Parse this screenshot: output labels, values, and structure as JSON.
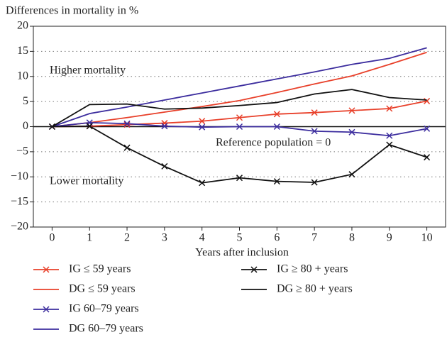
{
  "chart_data": {
    "type": "line",
    "title": "Differences in mortality in %",
    "xlabel": "Years after inclusion",
    "x": [
      0,
      1,
      2,
      3,
      4,
      5,
      6,
      7,
      8,
      9,
      10
    ],
    "xlim": [
      -0.5,
      10.5
    ],
    "xticks": [
      0,
      1,
      2,
      3,
      4,
      5,
      6,
      7,
      8,
      9,
      10
    ],
    "ylim": [
      -20,
      20
    ],
    "yticks": [
      {
        "value": -20,
        "label": "−20"
      },
      {
        "value": -15,
        "label": "−15"
      },
      {
        "value": -10,
        "label": "−10"
      },
      {
        "value": -5,
        "label": "−5"
      },
      0,
      5,
      10,
      15,
      20
    ],
    "grid": true,
    "series": [
      {
        "name": "IG ≤ 59 years",
        "color": "#e8402a",
        "marker": "x",
        "values": [
          0,
          0.1,
          0.4,
          0.7,
          1.1,
          1.8,
          2.5,
          2.8,
          3.2,
          3.6,
          5.1
        ]
      },
      {
        "name": "DG ≤ 59 years",
        "color": "#e8402a",
        "values": [
          0,
          0.8,
          1.8,
          2.9,
          4.0,
          5.2,
          6.8,
          8.5,
          10.1,
          12.4,
          14.8
        ]
      },
      {
        "name": "IG 60–79 years",
        "color": "#3c2d9e",
        "marker": "x",
        "values": [
          0,
          0.8,
          0.6,
          0.1,
          -0.1,
          0,
          0,
          -0.9,
          -1.1,
          -1.8,
          -0.4
        ]
      },
      {
        "name": "DG 60–79 years",
        "color": "#3c2d9e",
        "values": [
          0,
          2.6,
          3.9,
          5.3,
          6.7,
          8.1,
          9.5,
          10.9,
          12.4,
          13.6,
          15.7
        ]
      },
      {
        "name": "IG ≥ 80 + years",
        "color": "#111111",
        "marker": "x",
        "values": [
          0,
          0.1,
          -4.2,
          -7.9,
          -11.2,
          -10.2,
          -10.9,
          -11.1,
          -9.5,
          -3.6,
          -6.1
        ]
      },
      {
        "name": "DG ≥ 80 + years",
        "color": "#111111",
        "values": [
          0,
          4.4,
          4.5,
          3.5,
          3.7,
          4.2,
          4.8,
          6.5,
          7.4,
          5.8,
          5.3
        ]
      }
    ],
    "annotations": [
      {
        "text": "Higher mortality",
        "color": "#e8402a"
      },
      {
        "text": "Lower mortality",
        "color": "#2e9e3c"
      },
      {
        "text": "Reference population = 0",
        "color": "#111111"
      }
    ]
  }
}
